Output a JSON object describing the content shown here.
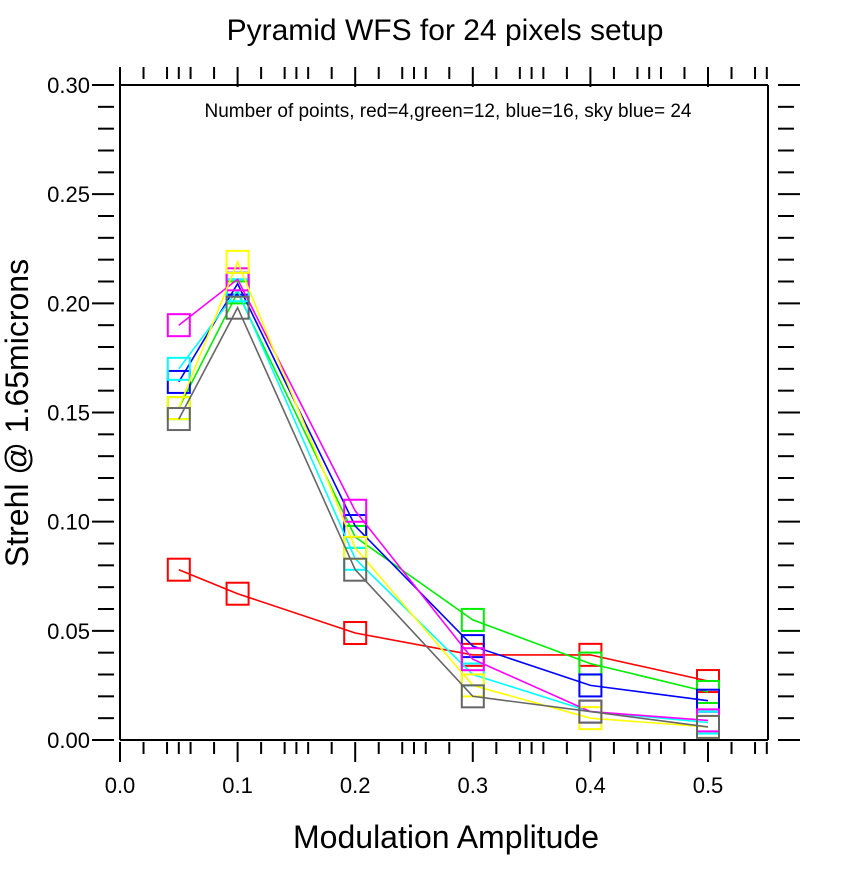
{
  "chart_data": {
    "type": "line",
    "title": "Pyramid WFS for 24 pixels setup",
    "subtitle": "Number of points, red=4,green=12, blue=16, sky blue= 24",
    "xlabel": "Modulation Amplitude",
    "ylabel": "Strehl @ 1.65microns",
    "xlim": [
      0.0,
      0.55
    ],
    "ylim": [
      0.0,
      0.3
    ],
    "xticks": [
      "0.0",
      "0.1",
      "0.2",
      "0.3",
      "0.4",
      "0.5"
    ],
    "yticks": [
      "0.00",
      "0.05",
      "0.10",
      "0.15",
      "0.20",
      "0.25",
      "0.30"
    ],
    "x": [
      0.05,
      0.1,
      0.2,
      0.3,
      0.4,
      0.5
    ],
    "series": [
      {
        "name": "red",
        "color": "#ff0000",
        "values": [
          0.078,
          0.067,
          0.049,
          0.039,
          0.039,
          0.027
        ]
      },
      {
        "name": "green",
        "color": "#00ee00",
        "values": [
          0.152,
          0.205,
          0.093,
          0.055,
          0.035,
          0.022
        ]
      },
      {
        "name": "blue",
        "color": "#0000ff",
        "values": [
          0.164,
          0.209,
          0.098,
          0.043,
          0.025,
          0.018
        ]
      },
      {
        "name": "sky blue",
        "color": "#00ffff",
        "values": [
          0.17,
          0.206,
          0.083,
          0.03,
          0.013,
          0.008
        ]
      },
      {
        "name": "magenta",
        "color": "#ff00ff",
        "values": [
          0.19,
          0.211,
          0.105,
          0.037,
          0.013,
          0.009
        ]
      },
      {
        "name": "yellow",
        "color": "#ffff00",
        "values": [
          0.152,
          0.219,
          0.088,
          0.025,
          0.01,
          0.006
        ]
      },
      {
        "name": "gray",
        "color": "#666666",
        "values": [
          0.147,
          0.198,
          0.078,
          0.02,
          0.013,
          0.006
        ]
      }
    ]
  }
}
